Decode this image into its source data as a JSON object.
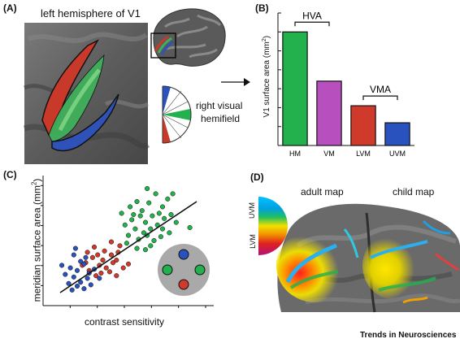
{
  "figure": {
    "footer": "Trends in Neurosciences"
  },
  "panelA": {
    "label": "(A)",
    "title": "left hemisphere of V1",
    "wedge_label_line1": "right visual",
    "wedge_label_line2": "hemifield",
    "colors": {
      "horizontal": "#22b14c",
      "upper": "#2a52be",
      "lower": "#d03a2a",
      "brain": "#6b6b6b"
    }
  },
  "panelB": {
    "label": "(B)",
    "chart_data": {
      "type": "bar",
      "categories": [
        "HM",
        "VM",
        "LVM",
        "UVM"
      ],
      "values": [
        6.0,
        3.4,
        2.1,
        1.2
      ],
      "colors": [
        "#22b14c",
        "#b84fbf",
        "#d03a2a",
        "#2a52be"
      ],
      "ylabel": "V1 surface area (mm²)",
      "ylabel_main": "V1 surface area (mm",
      "ylabel_sup": "2",
      "ylabel_close": ")",
      "ylim": [
        0,
        7
      ],
      "yticks": 7,
      "annotations": [
        {
          "text": "HVA",
          "spans": [
            "HM",
            "VM"
          ]
        },
        {
          "text": "VMA",
          "spans": [
            "LVM",
            "UVM"
          ]
        }
      ]
    }
  },
  "panelC": {
    "label": "(C)",
    "chart_data": {
      "type": "scatter",
      "xlabel": "contrast sensitivity",
      "ylabel": "meridian surface area (mm²)",
      "ylabel_main": "meridian surface area (mm",
      "ylabel_sup": "2",
      "ylabel_close": ")",
      "xlim": [
        0,
        10
      ],
      "ylim": [
        0,
        10
      ],
      "fit_line": [
        [
          1.0,
          1.0
        ],
        [
          9.0,
          8.0
        ]
      ],
      "series": [
        {
          "color": "#22b14c",
          "points": [
            [
              4.6,
              7.1
            ],
            [
              5.1,
              7.6
            ],
            [
              5.5,
              8.0
            ],
            [
              5.8,
              7.3
            ],
            [
              6.2,
              7.9
            ],
            [
              6.6,
              8.6
            ],
            [
              7.0,
              7.6
            ],
            [
              7.3,
              8.2
            ],
            [
              5.2,
              6.6
            ],
            [
              5.7,
              6.9
            ],
            [
              6.0,
              6.4
            ],
            [
              6.4,
              6.9
            ],
            [
              6.8,
              7.1
            ],
            [
              7.1,
              6.7
            ],
            [
              7.5,
              7.0
            ],
            [
              5.4,
              5.9
            ],
            [
              5.9,
              5.6
            ],
            [
              6.3,
              5.9
            ],
            [
              6.7,
              6.2
            ],
            [
              7.0,
              5.9
            ],
            [
              5.6,
              5.1
            ],
            [
              6.1,
              5.4
            ],
            [
              6.5,
              5.0
            ],
            [
              6.9,
              5.3
            ],
            [
              7.4,
              5.6
            ],
            [
              8.6,
              6.0
            ],
            [
              5.0,
              5.4
            ],
            [
              7.8,
              6.4
            ],
            [
              6.3,
              4.6
            ],
            [
              6.0,
              4.3
            ],
            [
              5.5,
              4.4
            ],
            [
              4.9,
              4.8
            ],
            [
              7.6,
              8.6
            ],
            [
              6.1,
              9.0
            ],
            [
              4.8,
              6.2
            ],
            [
              5.3,
              7.0
            ]
          ]
        },
        {
          "color": "#d03a2a",
          "points": [
            [
              2.5,
              3.3
            ],
            [
              2.9,
              3.7
            ],
            [
              3.2,
              3.9
            ],
            [
              3.6,
              4.2
            ],
            [
              4.0,
              3.9
            ],
            [
              4.3,
              3.5
            ],
            [
              3.3,
              3.1
            ],
            [
              3.7,
              2.9
            ],
            [
              2.7,
              2.7
            ],
            [
              4.1,
              3.3
            ],
            [
              3.0,
              4.5
            ],
            [
              3.5,
              3.5
            ],
            [
              2.3,
              3.1
            ],
            [
              4.5,
              4.6
            ],
            [
              3.9,
              2.6
            ],
            [
              4.3,
              2.3
            ],
            [
              3.1,
              2.3
            ],
            [
              4.7,
              2.9
            ],
            [
              2.6,
              4.1
            ],
            [
              3.4,
              2.5
            ],
            [
              5.0,
              3.2
            ],
            [
              4.0,
              4.9
            ],
            [
              4.4,
              4.1
            ]
          ]
        },
        {
          "color": "#2a52be",
          "points": [
            [
              1.8,
              3.9
            ],
            [
              2.2,
              3.4
            ],
            [
              1.6,
              2.9
            ],
            [
              2.0,
              2.7
            ],
            [
              2.4,
              3.2
            ],
            [
              1.3,
              2.4
            ],
            [
              1.8,
              2.2
            ],
            [
              2.2,
              1.8
            ],
            [
              2.6,
              2.1
            ],
            [
              1.5,
              1.7
            ],
            [
              2.0,
              1.5
            ],
            [
              2.4,
              1.3
            ],
            [
              2.8,
              1.6
            ],
            [
              1.1,
              3.1
            ],
            [
              2.7,
              2.5
            ],
            [
              3.0,
              2.8
            ],
            [
              1.9,
              4.4
            ],
            [
              2.5,
              3.7
            ],
            [
              3.3,
              2.1
            ],
            [
              1.7,
              1.2
            ]
          ]
        }
      ]
    },
    "inset": {
      "disc_color": "#a9a9a9"
    }
  },
  "panelD": {
    "label": "(D)",
    "adult_title": "adult map",
    "child_title": "child map",
    "uvm_label": "UVM",
    "lvm_label": "LVM"
  }
}
